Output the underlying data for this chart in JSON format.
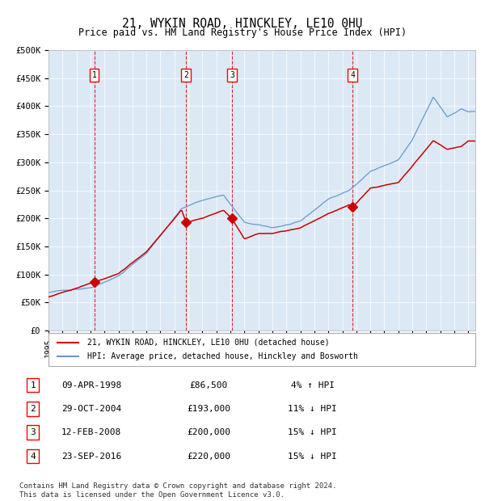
{
  "title1": "21, WYKIN ROAD, HINCKLEY, LE10 0HU",
  "title2": "Price paid vs. HM Land Registry's House Price Index (HPI)",
  "bg_color": "#dce9f5",
  "plot_bg_color": "#dce9f5",
  "red_line_color": "#cc0000",
  "blue_line_color": "#6699cc",
  "sale_points": [
    {
      "label": "1",
      "date": 1998.27,
      "price": 86500
    },
    {
      "label": "2",
      "date": 2004.83,
      "price": 193000
    },
    {
      "label": "3",
      "date": 2008.12,
      "price": 200000
    },
    {
      "label": "4",
      "date": 2016.73,
      "price": 220000
    }
  ],
  "vline_color": "#cc0000",
  "xlabel": "",
  "ylabel": "",
  "ylim": [
    0,
    500000
  ],
  "yticks": [
    0,
    50000,
    100000,
    150000,
    200000,
    250000,
    300000,
    350000,
    400000,
    450000,
    500000
  ],
  "ytick_labels": [
    "£0",
    "£50K",
    "£100K",
    "£150K",
    "£200K",
    "£250K",
    "£300K",
    "£350K",
    "£400K",
    "£450K",
    "£500K"
  ],
  "legend1_label": "21, WYKIN ROAD, HINCKLEY, LE10 0HU (detached house)",
  "legend2_label": "HPI: Average price, detached house, Hinckley and Bosworth",
  "table_rows": [
    {
      "num": "1",
      "date": "09-APR-1998",
      "price": "£86,500",
      "hpi": "4% ↑ HPI"
    },
    {
      "num": "2",
      "date": "29-OCT-2004",
      "price": "£193,000",
      "hpi": "11% ↓ HPI"
    },
    {
      "num": "3",
      "date": "12-FEB-2008",
      "price": "£200,000",
      "hpi": "15% ↓ HPI"
    },
    {
      "num": "4",
      "date": "23-SEP-2016",
      "price": "£220,000",
      "hpi": "15% ↓ HPI"
    }
  ],
  "footer": "Contains HM Land Registry data © Crown copyright and database right 2024.\nThis data is licensed under the Open Government Licence v3.0."
}
